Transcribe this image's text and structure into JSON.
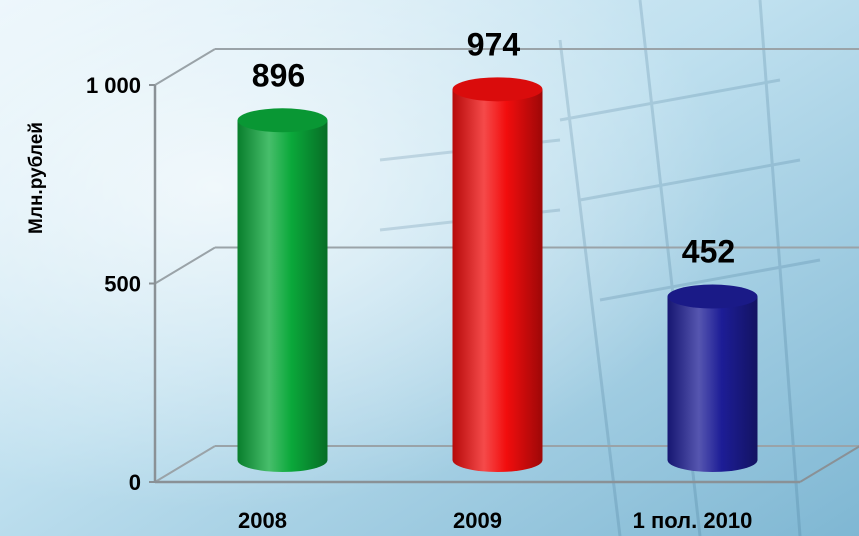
{
  "chart_data": {
    "type": "bar",
    "style": "3d-cylinder",
    "categories": [
      "2008",
      "2009",
      "1 пол. 2010"
    ],
    "values": [
      896,
      974,
      452
    ],
    "data_labels": [
      "896",
      "974",
      "452"
    ],
    "bar_colors": [
      "#0aa83a",
      "#f20d0d",
      "#1d1d96"
    ],
    "ylabel": "Млн.рублей",
    "ylim": [
      0,
      1000
    ],
    "yticks": [
      0,
      500,
      1000
    ],
    "ytick_labels": [
      "0",
      "500",
      "1 000"
    ],
    "grid": true,
    "legend": "none"
  }
}
